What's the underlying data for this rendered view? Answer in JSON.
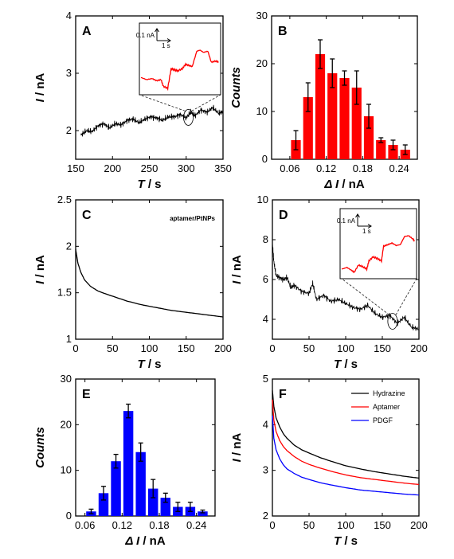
{
  "chart_data": [
    {
      "panel": "A",
      "type": "line",
      "xlabel_italic": "T",
      "xlabel_unit": " / s",
      "ylabel_italic": "I",
      "ylabel_unit": " / nA",
      "xlim": [
        150,
        350
      ],
      "ylim": [
        1.5,
        4
      ],
      "xticks": [
        150,
        200,
        250,
        300,
        350
      ],
      "yticks": [
        2,
        3,
        4
      ],
      "series": [
        {
          "color": "#000000",
          "x": [
            157,
            165,
            172,
            180,
            188,
            196,
            204,
            212,
            220,
            228,
            236,
            244,
            252,
            260,
            268,
            276,
            284,
            292,
            300,
            306,
            312,
            320,
            328,
            336,
            344,
            350
          ],
          "y": [
            1.92,
            2.0,
            1.98,
            2.08,
            2.12,
            2.05,
            2.12,
            2.1,
            2.18,
            2.2,
            2.14,
            2.2,
            2.24,
            2.22,
            2.18,
            2.24,
            2.24,
            2.28,
            2.22,
            2.32,
            2.26,
            2.36,
            2.32,
            2.4,
            2.3,
            2.33
          ]
        }
      ],
      "inset": {
        "scale_x_label": "1 s",
        "scale_y_label": "0.1 nA",
        "color": "#ff0000",
        "zoom_center": [
          303,
          2.23
        ],
        "x": [
          0,
          0.5,
          1.0,
          1.4,
          1.8,
          2.0,
          2.4,
          2.7,
          3.0,
          3.3,
          3.7,
          4.0,
          4.3,
          4.6,
          5.0,
          5.3,
          5.6,
          6.0,
          6.3,
          6.7,
          7.0
        ],
        "y": [
          2.22,
          2.2,
          2.21,
          2.19,
          2.2,
          2.14,
          2.12,
          2.3,
          2.29,
          2.28,
          2.3,
          2.34,
          2.33,
          2.32,
          2.46,
          2.47,
          2.45,
          2.46,
          2.36,
          2.37,
          2.36
        ]
      }
    },
    {
      "panel": "B",
      "type": "bar",
      "xlabel_italic": "Δ I",
      "xlabel_unit": " / nA",
      "ylabel_italic": "Counts",
      "xlim": [
        0.03,
        0.27
      ],
      "ylim": [
        0,
        30
      ],
      "xticks": [
        0.06,
        0.12,
        0.18,
        0.24
      ],
      "yticks": [
        0,
        10,
        20,
        30
      ],
      "color": "#ff0000",
      "x": [
        0.07,
        0.09,
        0.11,
        0.13,
        0.15,
        0.17,
        0.19,
        0.21,
        0.23,
        0.25
      ],
      "values": [
        4,
        13,
        22,
        18,
        17,
        15,
        9,
        4,
        3,
        2
      ],
      "errors": [
        2,
        3,
        3,
        3,
        1.5,
        3.5,
        2.5,
        0.5,
        1,
        1
      ]
    },
    {
      "panel": "C",
      "type": "line",
      "annotation": "aptamer/PtNPs",
      "xlabel_italic": "T",
      "xlabel_unit": " / s",
      "ylabel_italic": "I",
      "ylabel_unit": " / nA",
      "xlim": [
        0,
        200
      ],
      "ylim": [
        1.0,
        2.5
      ],
      "xticks": [
        0,
        50,
        100,
        150,
        200
      ],
      "yticks": [
        1.0,
        1.5,
        2.0,
        2.5
      ],
      "series": [
        {
          "color": "#000000",
          "x": [
            0,
            3,
            7,
            12,
            20,
            30,
            40,
            55,
            70,
            90,
            110,
            130,
            150,
            170,
            190,
            200
          ],
          "y": [
            1.97,
            1.82,
            1.72,
            1.64,
            1.57,
            1.52,
            1.49,
            1.45,
            1.41,
            1.37,
            1.34,
            1.31,
            1.29,
            1.27,
            1.25,
            1.24
          ]
        }
      ]
    },
    {
      "panel": "D",
      "type": "line",
      "xlabel_italic": "T",
      "xlabel_unit": " / s",
      "ylabel_italic": "I",
      "ylabel_unit": " / nA",
      "xlim": [
        0,
        200
      ],
      "ylim": [
        3,
        10
      ],
      "xticks": [
        0,
        50,
        100,
        150,
        200
      ],
      "yticks": [
        4,
        6,
        8,
        10
      ],
      "series": [
        {
          "color": "#000000",
          "x": [
            0,
            2,
            5,
            10,
            15,
            20,
            25,
            30,
            40,
            50,
            55,
            60,
            70,
            80,
            90,
            100,
            110,
            120,
            130,
            140,
            150,
            160,
            170,
            180,
            190,
            200
          ],
          "y": [
            7.8,
            6.9,
            6.2,
            6.1,
            6.0,
            6.1,
            5.6,
            5.7,
            5.4,
            5.3,
            5.8,
            5.0,
            5.2,
            4.9,
            5.0,
            4.8,
            4.6,
            4.5,
            4.7,
            4.3,
            4.1,
            4.2,
            3.8,
            4.1,
            3.6,
            3.5
          ]
        }
      ],
      "inset": {
        "scale_x_label": "1 s",
        "scale_y_label": "0.1 nA",
        "color": "#ff0000",
        "zoom_center": [
          164,
          3.9
        ],
        "x": [
          0,
          0.5,
          1.0,
          1.2,
          1.6,
          2.0,
          2.4,
          2.6,
          3.0,
          3.4,
          3.8,
          4.0,
          4.4,
          4.8,
          5.2,
          5.6,
          6.0,
          6.4,
          6.8,
          7.0
        ],
        "y": [
          3.9,
          3.92,
          3.88,
          3.86,
          3.95,
          3.93,
          3.9,
          4.0,
          4.05,
          4.03,
          4.0,
          4.18,
          4.2,
          4.22,
          4.19,
          4.2,
          4.3,
          4.31,
          4.27,
          4.24
        ]
      }
    },
    {
      "panel": "E",
      "type": "bar",
      "xlabel_italic": "Δ I",
      "xlabel_unit": " / nA",
      "ylabel_italic": "Counts",
      "xlim": [
        0.045,
        0.27
      ],
      "ylim": [
        0,
        30
      ],
      "xticks": [
        0.06,
        0.12,
        0.18,
        0.24
      ],
      "yticks": [
        0,
        10,
        20,
        30
      ],
      "color": "#0000ff",
      "x": [
        0.07,
        0.09,
        0.11,
        0.13,
        0.15,
        0.17,
        0.19,
        0.21,
        0.23,
        0.25
      ],
      "values": [
        1,
        5,
        12,
        23,
        14,
        6,
        4,
        2,
        2,
        1
      ],
      "errors": [
        0.5,
        1.5,
        1.5,
        1.5,
        2,
        2,
        1,
        1,
        1,
        0.3
      ]
    },
    {
      "panel": "F",
      "type": "line",
      "xlabel_italic": "T",
      "xlabel_unit": " / s",
      "ylabel_italic": "I",
      "ylabel_unit": " / nA",
      "xlim": [
        0,
        200
      ],
      "ylim": [
        2,
        5
      ],
      "xticks": [
        0,
        50,
        100,
        150,
        200
      ],
      "yticks": [
        2,
        3,
        4,
        5
      ],
      "legend_position": "top-right",
      "series": [
        {
          "name": "Hydrazine",
          "color": "#000000",
          "x": [
            0,
            2,
            5,
            10,
            15,
            20,
            30,
            40,
            50,
            65,
            80,
            100,
            120,
            140,
            160,
            180,
            200
          ],
          "y": [
            4.75,
            4.4,
            4.15,
            3.95,
            3.8,
            3.7,
            3.55,
            3.45,
            3.38,
            3.28,
            3.2,
            3.1,
            3.03,
            2.97,
            2.92,
            2.87,
            2.83
          ]
        },
        {
          "name": "Aptamer",
          "color": "#ff0000",
          "x": [
            0,
            2,
            5,
            10,
            15,
            20,
            30,
            40,
            50,
            65,
            80,
            100,
            120,
            140,
            160,
            180,
            200
          ],
          "y": [
            4.55,
            4.1,
            3.85,
            3.65,
            3.52,
            3.43,
            3.3,
            3.2,
            3.13,
            3.05,
            2.98,
            2.9,
            2.84,
            2.8,
            2.76,
            2.72,
            2.69
          ]
        },
        {
          "name": "PDGF",
          "color": "#0000ff",
          "x": [
            0,
            2,
            5,
            10,
            15,
            20,
            30,
            40,
            50,
            65,
            80,
            100,
            120,
            140,
            160,
            180,
            200
          ],
          "y": [
            4.2,
            3.7,
            3.45,
            3.25,
            3.12,
            3.03,
            2.93,
            2.85,
            2.8,
            2.73,
            2.68,
            2.62,
            2.57,
            2.54,
            2.51,
            2.48,
            2.46
          ]
        }
      ]
    }
  ]
}
